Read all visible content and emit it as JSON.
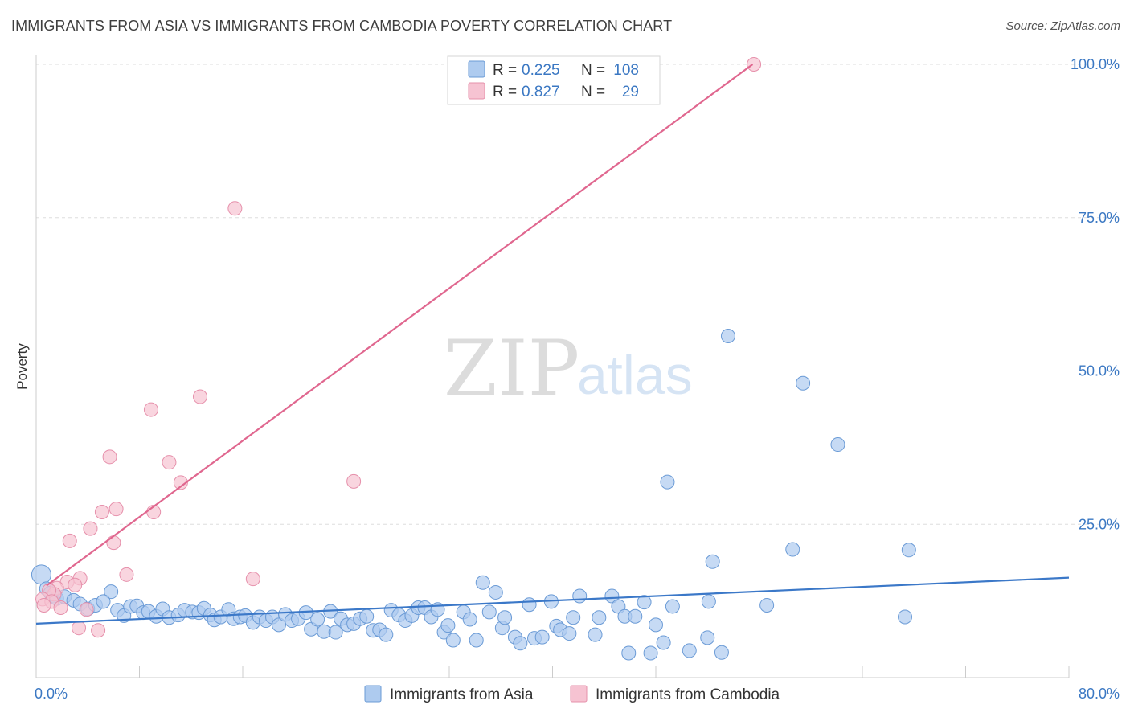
{
  "title": "IMMIGRANTS FROM ASIA VS IMMIGRANTS FROM CAMBODIA POVERTY CORRELATION CHART",
  "source": "Source: ZipAtlas.com",
  "watermark": {
    "zip": "ZIP",
    "atlas": "atlas"
  },
  "colors": {
    "asia_fill": "#aecbef",
    "asia_stroke": "#6b9bd6",
    "asia_line": "#3b78c8",
    "cambodia_fill": "#f6c3d2",
    "cambodia_stroke": "#e690ab",
    "cambodia_line": "#e0678f",
    "tick_label": "#3b78c3",
    "grid": "#dddddd"
  },
  "legend": {
    "rows": [
      {
        "series": "asia",
        "r_label": "R = ",
        "r_value": "0.225",
        "n_label": "N = ",
        "n_value": "108"
      },
      {
        "series": "cambodia",
        "r_label": "R = ",
        "r_value": "0.827",
        "n_label": "N = ",
        "n_value": "29"
      }
    ]
  },
  "chart_data": {
    "type": "scatter",
    "title": "IMMIGRANTS FROM ASIA VS IMMIGRANTS FROM CAMBODIA POVERTY CORRELATION CHART",
    "xlabel": "",
    "ylabel": "Poverty",
    "xlim": [
      0,
      80
    ],
    "ylim": [
      0,
      100
    ],
    "x_tick_labels": [
      {
        "value": 0,
        "label": "0.0%"
      },
      {
        "value": 80,
        "label": "80.0%"
      }
    ],
    "y_tick_labels": [
      {
        "value": 25,
        "label": "25.0%"
      },
      {
        "value": 50,
        "label": "50.0%"
      },
      {
        "value": 75,
        "label": "75.0%"
      },
      {
        "value": 100,
        "label": "100.0%"
      }
    ],
    "grid": true,
    "series": [
      {
        "name": "Immigrants from Asia",
        "key": "asia",
        "trendline": {
          "x": [
            0,
            80
          ],
          "y": [
            8.8,
            16.3
          ]
        },
        "points": [
          [
            0.4,
            16.8
          ],
          [
            0.8,
            14.5
          ],
          [
            1.1,
            13.8
          ],
          [
            1.4,
            13.3
          ],
          [
            1.6,
            12.9
          ],
          [
            2.2,
            13.2
          ],
          [
            2.9,
            12.6
          ],
          [
            3.4,
            12.0
          ],
          [
            4.0,
            11.2
          ],
          [
            4.6,
            11.8
          ],
          [
            5.8,
            14.0
          ],
          [
            5.2,
            12.4
          ],
          [
            6.3,
            11.0
          ],
          [
            6.8,
            10.1
          ],
          [
            7.3,
            11.6
          ],
          [
            7.8,
            11.7
          ],
          [
            8.3,
            10.6
          ],
          [
            8.7,
            10.8
          ],
          [
            9.3,
            10.0
          ],
          [
            9.8,
            11.2
          ],
          [
            10.3,
            9.8
          ],
          [
            11.0,
            10.2
          ],
          [
            11.5,
            11.0
          ],
          [
            12.1,
            10.7
          ],
          [
            12.6,
            10.6
          ],
          [
            13.0,
            11.3
          ],
          [
            13.5,
            10.2
          ],
          [
            13.8,
            9.4
          ],
          [
            14.3,
            9.9
          ],
          [
            14.9,
            11.1
          ],
          [
            15.3,
            9.6
          ],
          [
            15.8,
            9.9
          ],
          [
            16.2,
            10.1
          ],
          [
            16.8,
            9.0
          ],
          [
            17.3,
            9.9
          ],
          [
            17.8,
            9.3
          ],
          [
            18.3,
            9.9
          ],
          [
            18.8,
            8.6
          ],
          [
            19.3,
            10.3
          ],
          [
            19.8,
            9.3
          ],
          [
            20.3,
            9.6
          ],
          [
            20.9,
            10.6
          ],
          [
            21.3,
            7.9
          ],
          [
            21.8,
            9.5
          ],
          [
            22.3,
            7.5
          ],
          [
            22.8,
            10.8
          ],
          [
            23.2,
            7.4
          ],
          [
            23.6,
            9.6
          ],
          [
            24.1,
            8.6
          ],
          [
            24.6,
            8.8
          ],
          [
            25.1,
            9.6
          ],
          [
            25.6,
            10.0
          ],
          [
            26.1,
            7.7
          ],
          [
            26.6,
            7.8
          ],
          [
            27.1,
            7.0
          ],
          [
            27.5,
            11.0
          ],
          [
            28.1,
            10.2
          ],
          [
            28.6,
            9.3
          ],
          [
            29.1,
            10.1
          ],
          [
            29.6,
            11.4
          ],
          [
            30.1,
            11.4
          ],
          [
            30.6,
            9.9
          ],
          [
            31.1,
            11.1
          ],
          [
            31.6,
            7.4
          ],
          [
            31.9,
            8.5
          ],
          [
            32.3,
            6.1
          ],
          [
            33.1,
            10.7
          ],
          [
            33.6,
            9.5
          ],
          [
            34.1,
            6.1
          ],
          [
            34.6,
            15.5
          ],
          [
            35.1,
            10.7
          ],
          [
            35.6,
            13.9
          ],
          [
            36.1,
            8.1
          ],
          [
            36.3,
            9.8
          ],
          [
            37.1,
            6.6
          ],
          [
            37.5,
            5.6
          ],
          [
            38.2,
            11.9
          ],
          [
            38.6,
            6.4
          ],
          [
            39.2,
            6.6
          ],
          [
            39.9,
            12.4
          ],
          [
            40.3,
            8.4
          ],
          [
            40.6,
            7.8
          ],
          [
            41.3,
            7.2
          ],
          [
            41.6,
            9.8
          ],
          [
            42.1,
            13.3
          ],
          [
            43.3,
            7.0
          ],
          [
            43.6,
            9.8
          ],
          [
            44.6,
            13.3
          ],
          [
            45.1,
            11.6
          ],
          [
            45.6,
            10.0
          ],
          [
            45.9,
            4.0
          ],
          [
            46.4,
            10.0
          ],
          [
            47.1,
            12.3
          ],
          [
            47.6,
            4.0
          ],
          [
            48.0,
            8.6
          ],
          [
            48.6,
            5.7
          ],
          [
            48.9,
            31.9
          ],
          [
            49.3,
            11.6
          ],
          [
            50.6,
            4.4
          ],
          [
            52.0,
            6.5
          ],
          [
            52.1,
            12.4
          ],
          [
            53.1,
            4.1
          ],
          [
            52.4,
            18.9
          ],
          [
            53.6,
            55.7
          ],
          [
            56.6,
            11.8
          ],
          [
            58.6,
            20.9
          ],
          [
            59.4,
            48.0
          ],
          [
            62.1,
            38.0
          ],
          [
            67.3,
            9.9
          ],
          [
            67.6,
            20.8
          ]
        ]
      },
      {
        "name": "Immigrants from Cambodia",
        "key": "cambodia",
        "trendline": {
          "x": [
            0.8,
            55.5
          ],
          "y": [
            15.0,
            100.0
          ]
        },
        "points": [
          [
            55.6,
            100.0
          ],
          [
            15.4,
            76.5
          ],
          [
            12.7,
            45.8
          ],
          [
            8.9,
            43.7
          ],
          [
            10.3,
            35.1
          ],
          [
            5.7,
            36.0
          ],
          [
            11.2,
            31.8
          ],
          [
            24.6,
            32.0
          ],
          [
            5.1,
            27.0
          ],
          [
            6.2,
            27.5
          ],
          [
            9.1,
            27.0
          ],
          [
            4.2,
            24.3
          ],
          [
            2.6,
            22.3
          ],
          [
            6.0,
            22.0
          ],
          [
            7.0,
            16.8
          ],
          [
            16.8,
            16.1
          ],
          [
            3.4,
            16.2
          ],
          [
            2.4,
            15.6
          ],
          [
            3.0,
            15.1
          ],
          [
            1.6,
            14.6
          ],
          [
            1.4,
            13.6
          ],
          [
            1.0,
            14.2
          ],
          [
            0.5,
            12.8
          ],
          [
            1.2,
            12.4
          ],
          [
            0.6,
            11.8
          ],
          [
            1.9,
            11.4
          ],
          [
            3.9,
            11.1
          ],
          [
            3.3,
            8.1
          ],
          [
            4.8,
            7.7
          ]
        ]
      }
    ]
  },
  "bottom_legend": [
    {
      "series": "asia",
      "label": "Immigrants from Asia"
    },
    {
      "series": "cambodia",
      "label": "Immigrants from Cambodia"
    }
  ]
}
